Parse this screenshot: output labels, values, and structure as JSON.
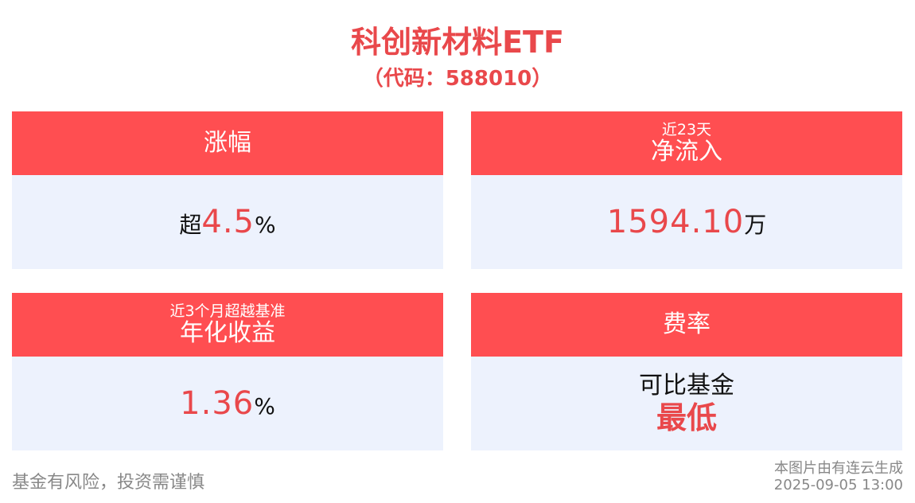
{
  "header": {
    "title": "科创新材料ETF",
    "subtitle": "（代码：588010）"
  },
  "cards": [
    {
      "label": "涨幅",
      "value": {
        "prefix": "超",
        "number": "4.5",
        "unit": "%"
      }
    },
    {
      "sublabel": "近23天",
      "label": "净流入",
      "value": {
        "number": "1594.10",
        "unit": "万"
      }
    },
    {
      "sublabel": "近3个月超越基准",
      "label": "年化收益",
      "value": {
        "number": "1.36",
        "unit": "%"
      }
    },
    {
      "label": "费率",
      "value": {
        "line1": "可比基金",
        "line2": "最低"
      }
    }
  ],
  "footer": {
    "disclaimer": "基金有风险，投资需谨慎",
    "source": "本图片由有连云生成",
    "timestamp": "2025-09-05 13:00"
  }
}
